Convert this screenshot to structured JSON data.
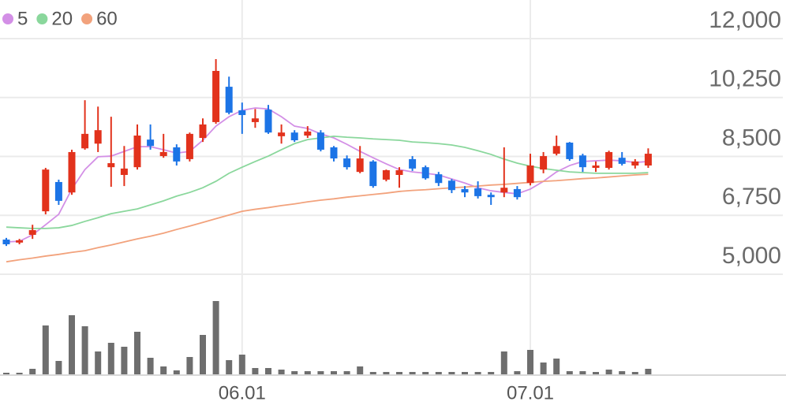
{
  "chart_data": {
    "type": "candlestick",
    "categories": [
      null,
      null,
      null,
      null,
      null,
      null,
      null,
      null,
      null,
      null,
      null,
      null,
      null,
      null,
      null,
      null,
      null,
      null,
      "06.01",
      null,
      null,
      null,
      null,
      null,
      null,
      null,
      null,
      null,
      null,
      null,
      null,
      null,
      null,
      null,
      null,
      null,
      null,
      null,
      null,
      null,
      "07.01",
      null,
      null,
      null,
      null,
      null,
      null,
      null,
      null,
      null
    ],
    "open": [
      6030,
      5940,
      6170,
      6870,
      7740,
      7430,
      8740,
      8880,
      8180,
      7950,
      8180,
      9000,
      8510,
      8770,
      8420,
      9050,
      9520,
      10570,
      9870,
      9520,
      9890,
      9100,
      9210,
      9120,
      9210,
      8770,
      8440,
      8040,
      8350,
      7810,
      7950,
      8420,
      8180,
      7970,
      7780,
      7530,
      7550,
      7360,
      7430,
      7530,
      7710,
      8110,
      8580,
      8910,
      8530,
      8160,
      8160,
      8460,
      8230,
      8230
    ],
    "high": [
      6080,
      6050,
      6470,
      8160,
      7810,
      8700,
      10170,
      9980,
      9680,
      8810,
      9450,
      9450,
      9170,
      8860,
      9210,
      9630,
      11390,
      10870,
      10100,
      9910,
      10030,
      9450,
      9280,
      9400,
      9280,
      8810,
      8530,
      8810,
      8390,
      8110,
      8180,
      8510,
      8230,
      8040,
      7830,
      7620,
      7760,
      7430,
      8770,
      7620,
      8580,
      8630,
      9120,
      8930,
      8580,
      8350,
      8670,
      8630,
      8420,
      8740
    ],
    "low": [
      5840,
      5890,
      6050,
      6780,
      7060,
      7360,
      8700,
      8630,
      7600,
      7620,
      8110,
      8700,
      8460,
      8230,
      8350,
      8930,
      9470,
      9750,
      9170,
      9350,
      9170,
      8880,
      8930,
      9050,
      8650,
      8350,
      8110,
      8000,
      7570,
      7760,
      7570,
      8070,
      7810,
      7620,
      7410,
      7290,
      7250,
      7060,
      7290,
      7220,
      7640,
      8000,
      8530,
      8370,
      8040,
      8040,
      8110,
      8230,
      8140,
      8160
    ],
    "close": [
      5890,
      6010,
      6310,
      8110,
      7180,
      8630,
      9170,
      9280,
      8300,
      8140,
      9120,
      8810,
      8630,
      8350,
      9170,
      9450,
      11040,
      9800,
      9730,
      9630,
      9210,
      9210,
      8980,
      9240,
      8700,
      8440,
      8180,
      8440,
      7620,
      8090,
      8090,
      8140,
      7850,
      7710,
      7500,
      7430,
      7320,
      7290,
      7570,
      7290,
      8230,
      8510,
      8810,
      8420,
      8180,
      8230,
      8630,
      8280,
      8350,
      8580
    ],
    "up_color": "#e2321c",
    "down_color": "#1c74e6",
    "volume": [
      2,
      2,
      7,
      62,
      17,
      75,
      61,
      29,
      40,
      35,
      54,
      21,
      10,
      5,
      22,
      50,
      93,
      18,
      25,
      8,
      8,
      6,
      4,
      4,
      4,
      4,
      4,
      10,
      3,
      3,
      3,
      3,
      3,
      3,
      3,
      3,
      3,
      3,
      29,
      4,
      31,
      15,
      20,
      4,
      4,
      3,
      6,
      4,
      3,
      7
    ],
    "volume_color": "#6e6e6e",
    "series": [
      {
        "name": "5",
        "color": "#d38fe6",
        "values": [
          5960,
          5980,
          6170,
          6470,
          6780,
          7530,
          8110,
          8490,
          8510,
          8650,
          8790,
          8790,
          8700,
          8600,
          8650,
          8980,
          9400,
          9680,
          9870,
          9940,
          9910,
          9680,
          9400,
          9330,
          9170,
          9050,
          8860,
          8650,
          8460,
          8280,
          8110,
          8040,
          8000,
          7950,
          7830,
          7710,
          7570,
          7480,
          7430,
          7390,
          7530,
          7760,
          8040,
          8230,
          8350,
          8370,
          8390,
          8370,
          8320,
          8350
        ]
      },
      {
        "name": "20",
        "color": "#8ad79c",
        "values": [
          6400,
          6380,
          6360,
          6360,
          6380,
          6450,
          6570,
          6680,
          6800,
          6870,
          6940,
          7060,
          7180,
          7320,
          7430,
          7570,
          7760,
          8000,
          8180,
          8350,
          8510,
          8700,
          8880,
          9000,
          9050,
          9100,
          9070,
          9050,
          9020,
          9000,
          8980,
          8930,
          8910,
          8880,
          8840,
          8770,
          8670,
          8560,
          8420,
          8300,
          8210,
          8140,
          8090,
          8040,
          8020,
          8000,
          8000,
          8000,
          8000,
          8020
        ]
      },
      {
        "name": "60",
        "color": "#f2a27c",
        "values": [
          5370,
          5430,
          5480,
          5540,
          5590,
          5650,
          5700,
          5790,
          5870,
          5960,
          6050,
          6130,
          6220,
          6330,
          6430,
          6540,
          6650,
          6760,
          6870,
          6930,
          6980,
          7040,
          7090,
          7150,
          7200,
          7240,
          7290,
          7330,
          7370,
          7410,
          7460,
          7490,
          7510,
          7540,
          7570,
          7590,
          7620,
          7650,
          7670,
          7700,
          7730,
          7760,
          7780,
          7810,
          7840,
          7860,
          7890,
          7920,
          7950,
          7970
        ]
      }
    ],
    "ylim": [
      5000,
      12000
    ],
    "yticks": [
      {
        "value": 5000,
        "label": "5,000"
      },
      {
        "value": 6750,
        "label": "6,750"
      },
      {
        "value": 8500,
        "label": "8,500"
      },
      {
        "value": 10250,
        "label": "10,250"
      },
      {
        "value": 12000,
        "label": "12,000"
      }
    ],
    "grid": true
  }
}
